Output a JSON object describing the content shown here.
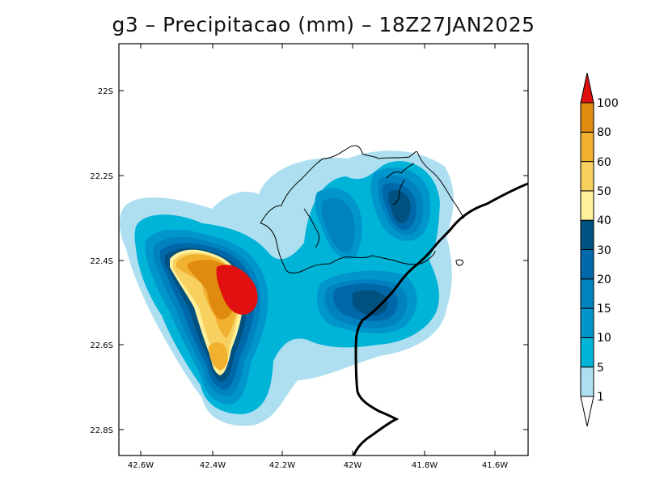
{
  "title": "g3 – Precipitacao (mm) – 18Z27JAN2025",
  "map": {
    "lon_range": [
      -42.65,
      -41.5
    ],
    "lat_range": [
      -22.1,
      -22.85
    ],
    "lon_ticks": [
      "42.6W",
      "42.4W",
      "42.2W",
      "42W",
      "41.8W",
      "41.6W"
    ],
    "lat_ticks": [
      "22S",
      "22.2S",
      "22.4S",
      "22.6S",
      "22.8S"
    ]
  },
  "colorbar": {
    "labels": [
      "1",
      "5",
      "10",
      "15",
      "20",
      "30",
      "40",
      "50",
      "60",
      "80",
      "100"
    ],
    "colors": [
      "#aedff0",
      "#00b4d8",
      "#0096cc",
      "#0082c0",
      "#0068a8",
      "#005080",
      "#fff09a",
      "#f8d060",
      "#f0b030",
      "#e08a10",
      "#e01010"
    ]
  }
}
